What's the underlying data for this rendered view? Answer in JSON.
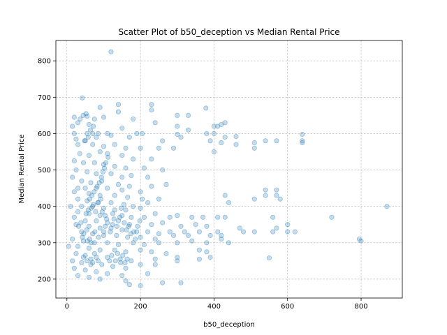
{
  "chart_data": {
    "type": "scatter",
    "title": "Scatter Plot of b50_deception vs Median Rental Price",
    "xlabel": "b50_deception",
    "ylabel": "Median Rental Price",
    "xlim": [
      -30,
      912
    ],
    "ylim": [
      148,
      856
    ],
    "xticks": [
      0,
      200,
      400,
      600,
      800
    ],
    "yticks": [
      200,
      300,
      400,
      500,
      600,
      700,
      800
    ],
    "grid": true,
    "marker_color": "#1f77b4",
    "marker_opacity": 0.25,
    "points": [
      [
        120,
        825
      ],
      [
        42,
        698
      ],
      [
        140,
        680
      ],
      [
        230,
        680
      ],
      [
        378,
        670
      ],
      [
        90,
        672
      ],
      [
        230,
        665
      ],
      [
        140,
        660
      ],
      [
        300,
        650
      ],
      [
        330,
        650
      ],
      [
        20,
        645
      ],
      [
        55,
        648
      ],
      [
        75,
        640
      ],
      [
        100,
        645
      ],
      [
        180,
        640
      ],
      [
        30,
        630
      ],
      [
        240,
        630
      ],
      [
        400,
        620
      ],
      [
        410,
        620
      ],
      [
        430,
        630
      ],
      [
        420,
        625
      ],
      [
        15,
        620
      ],
      [
        60,
        625
      ],
      [
        150,
        615
      ],
      [
        300,
        620
      ],
      [
        330,
        610
      ],
      [
        380,
        600
      ],
      [
        400,
        600
      ],
      [
        640,
        598
      ],
      [
        20,
        600
      ],
      [
        55,
        600
      ],
      [
        70,
        600
      ],
      [
        85,
        600
      ],
      [
        110,
        600
      ],
      [
        190,
        600
      ],
      [
        205,
        600
      ],
      [
        300,
        598
      ],
      [
        310,
        590
      ],
      [
        430,
        590
      ],
      [
        460,
        592
      ],
      [
        640,
        580
      ],
      [
        25,
        585
      ],
      [
        50,
        580
      ],
      [
        80,
        590
      ],
      [
        120,
        595
      ],
      [
        170,
        590
      ],
      [
        260,
        580
      ],
      [
        390,
        580
      ],
      [
        420,
        575
      ],
      [
        460,
        570
      ],
      [
        510,
        575
      ],
      [
        540,
        580
      ],
      [
        570,
        580
      ],
      [
        640,
        575
      ],
      [
        30,
        570
      ],
      [
        70,
        570
      ],
      [
        100,
        565
      ],
      [
        130,
        570
      ],
      [
        160,
        560
      ],
      [
        200,
        560
      ],
      [
        250,
        560
      ],
      [
        290,
        560
      ],
      [
        400,
        550
      ],
      [
        510,
        560
      ],
      [
        35,
        545
      ],
      [
        60,
        540
      ],
      [
        90,
        550
      ],
      [
        110,
        545
      ],
      [
        150,
        540
      ],
      [
        180,
        530
      ],
      [
        230,
        530
      ],
      [
        20,
        525
      ],
      [
        45,
        520
      ],
      [
        75,
        520
      ],
      [
        100,
        515
      ],
      [
        130,
        510
      ],
      [
        160,
        505
      ],
      [
        210,
        505
      ],
      [
        260,
        500
      ],
      [
        25,
        500
      ],
      [
        55,
        495
      ],
      [
        80,
        490
      ],
      [
        120,
        490
      ],
      [
        150,
        480
      ],
      [
        175,
        485
      ],
      [
        220,
        480
      ],
      [
        15,
        480
      ],
      [
        40,
        470
      ],
      [
        65,
        465
      ],
      [
        95,
        470
      ],
      [
        140,
        460
      ],
      [
        170,
        455
      ],
      [
        230,
        455
      ],
      [
        270,
        460
      ],
      [
        30,
        450
      ],
      [
        50,
        450
      ],
      [
        80,
        450
      ],
      [
        110,
        450
      ],
      [
        150,
        445
      ],
      [
        200,
        440
      ],
      [
        540,
        445
      ],
      [
        570,
        445
      ],
      [
        20,
        440
      ],
      [
        60,
        435
      ],
      [
        90,
        430
      ],
      [
        130,
        430
      ],
      [
        165,
        425
      ],
      [
        205,
        420
      ],
      [
        250,
        420
      ],
      [
        570,
        430
      ],
      [
        430,
        430
      ],
      [
        30,
        420
      ],
      [
        55,
        415
      ],
      [
        85,
        410
      ],
      [
        120,
        410
      ],
      [
        155,
        405
      ],
      [
        180,
        400
      ],
      [
        220,
        410
      ],
      [
        440,
        410
      ],
      [
        510,
        420
      ],
      [
        580,
        420
      ],
      [
        540,
        430
      ],
      [
        870,
        400
      ],
      [
        10,
        400
      ],
      [
        40,
        400
      ],
      [
        70,
        400
      ],
      [
        100,
        395
      ],
      [
        130,
        390
      ],
      [
        160,
        390
      ],
      [
        200,
        395
      ],
      [
        30,
        385
      ],
      [
        60,
        380
      ],
      [
        90,
        375
      ],
      [
        125,
        380
      ],
      [
        150,
        375
      ],
      [
        175,
        370
      ],
      [
        210,
        370
      ],
      [
        240,
        380
      ],
      [
        280,
        370
      ],
      [
        300,
        375
      ],
      [
        340,
        370
      ],
      [
        370,
        370
      ],
      [
        410,
        370
      ],
      [
        430,
        370
      ],
      [
        20,
        370
      ],
      [
        50,
        360
      ],
      [
        80,
        360
      ],
      [
        110,
        355
      ],
      [
        140,
        360
      ],
      [
        170,
        350
      ],
      [
        230,
        350
      ],
      [
        260,
        355
      ],
      [
        310,
        345
      ],
      [
        350,
        350
      ],
      [
        380,
        345
      ],
      [
        560,
        370
      ],
      [
        720,
        370
      ],
      [
        25,
        350
      ],
      [
        60,
        345
      ],
      [
        90,
        340
      ],
      [
        120,
        340
      ],
      [
        150,
        335
      ],
      [
        190,
        330
      ],
      [
        220,
        330
      ],
      [
        250,
        325
      ],
      [
        280,
        330
      ],
      [
        320,
        330
      ],
      [
        360,
        330
      ],
      [
        410,
        330
      ],
      [
        480,
        330
      ],
      [
        510,
        330
      ],
      [
        560,
        330
      ],
      [
        600,
        330
      ],
      [
        620,
        330
      ],
      [
        40,
        330
      ],
      [
        70,
        325
      ],
      [
        100,
        320
      ],
      [
        135,
        320
      ],
      [
        165,
        315
      ],
      [
        200,
        315
      ],
      [
        240,
        310
      ],
      [
        290,
        320
      ],
      [
        330,
        320
      ],
      [
        390,
        320
      ],
      [
        420,
        320
      ],
      [
        600,
        350
      ],
      [
        570,
        340
      ],
      [
        15,
        310
      ],
      [
        45,
        305
      ],
      [
        75,
        300
      ],
      [
        110,
        300
      ],
      [
        140,
        295
      ],
      [
        180,
        300
      ],
      [
        210,
        295
      ],
      [
        250,
        300
      ],
      [
        300,
        300
      ],
      [
        340,
        305
      ],
      [
        380,
        300
      ],
      [
        420,
        310
      ],
      [
        440,
        300
      ],
      [
        470,
        340
      ],
      [
        795,
        310
      ],
      [
        800,
        305
      ],
      [
        5,
        290
      ],
      [
        30,
        290
      ],
      [
        60,
        285
      ],
      [
        90,
        280
      ],
      [
        130,
        280
      ],
      [
        160,
        275
      ],
      [
        200,
        280
      ],
      [
        230,
        275
      ],
      [
        270,
        270
      ],
      [
        360,
        280
      ],
      [
        380,
        275
      ],
      [
        25,
        270
      ],
      [
        50,
        265
      ],
      [
        80,
        260
      ],
      [
        110,
        260
      ],
      [
        145,
        255
      ],
      [
        175,
        250
      ],
      [
        240,
        255
      ],
      [
        300,
        260
      ],
      [
        360,
        255
      ],
      [
        390,
        260
      ],
      [
        550,
        258
      ],
      [
        15,
        250
      ],
      [
        40,
        245
      ],
      [
        65,
        240
      ],
      [
        95,
        240
      ],
      [
        125,
        235
      ],
      [
        160,
        230
      ],
      [
        200,
        240
      ],
      [
        240,
        240
      ],
      [
        300,
        250
      ],
      [
        20,
        230
      ],
      [
        50,
        225
      ],
      [
        80,
        220
      ],
      [
        110,
        215
      ],
      [
        150,
        210
      ],
      [
        30,
        210
      ],
      [
        60,
        205
      ],
      [
        90,
        200
      ],
      [
        160,
        195
      ],
      [
        260,
        190
      ],
      [
        310,
        190
      ],
      [
        170,
        185
      ],
      [
        200,
        182
      ],
      [
        220,
        215
      ],
      [
        45,
        260
      ],
      [
        55,
        250
      ],
      [
        65,
        255
      ],
      [
        70,
        245
      ],
      [
        75,
        270
      ],
      [
        85,
        250
      ],
      [
        52,
        380
      ],
      [
        58,
        390
      ],
      [
        66,
        395
      ],
      [
        72,
        405
      ],
      [
        78,
        385
      ],
      [
        84,
        410
      ],
      [
        92,
        420
      ],
      [
        96,
        385
      ],
      [
        104,
        375
      ],
      [
        108,
        365
      ],
      [
        62,
        420
      ],
      [
        68,
        430
      ],
      [
        74,
        440
      ],
      [
        82,
        455
      ],
      [
        88,
        465
      ],
      [
        94,
        480
      ],
      [
        98,
        495
      ],
      [
        102,
        505
      ],
      [
        106,
        520
      ],
      [
        112,
        535
      ],
      [
        48,
        580
      ],
      [
        58,
        590
      ],
      [
        64,
        610
      ],
      [
        72,
        620
      ],
      [
        36,
        640
      ],
      [
        44,
        650
      ],
      [
        52,
        655
      ],
      [
        118,
        330
      ],
      [
        124,
        350
      ],
      [
        128,
        365
      ],
      [
        136,
        345
      ],
      [
        144,
        370
      ],
      [
        148,
        395
      ],
      [
        156,
        355
      ],
      [
        162,
        335
      ],
      [
        168,
        345
      ],
      [
        174,
        325
      ],
      [
        182,
        330
      ],
      [
        186,
        310
      ],
      [
        192,
        345
      ],
      [
        198,
        360
      ],
      [
        116,
        250
      ],
      [
        122,
        265
      ],
      [
        132,
        250
      ],
      [
        138,
        270
      ],
      [
        146,
        245
      ],
      [
        152,
        265
      ],
      [
        158,
        245
      ],
      [
        164,
        255
      ],
      [
        32,
        345
      ],
      [
        38,
        355
      ],
      [
        42,
        315
      ],
      [
        46,
        325
      ],
      [
        54,
        335
      ],
      [
        56,
        305
      ],
      [
        62,
        310
      ],
      [
        66,
        300
      ],
      [
        76,
        330
      ],
      [
        86,
        315
      ],
      [
        100,
        330
      ],
      [
        104,
        345
      ]
    ]
  }
}
